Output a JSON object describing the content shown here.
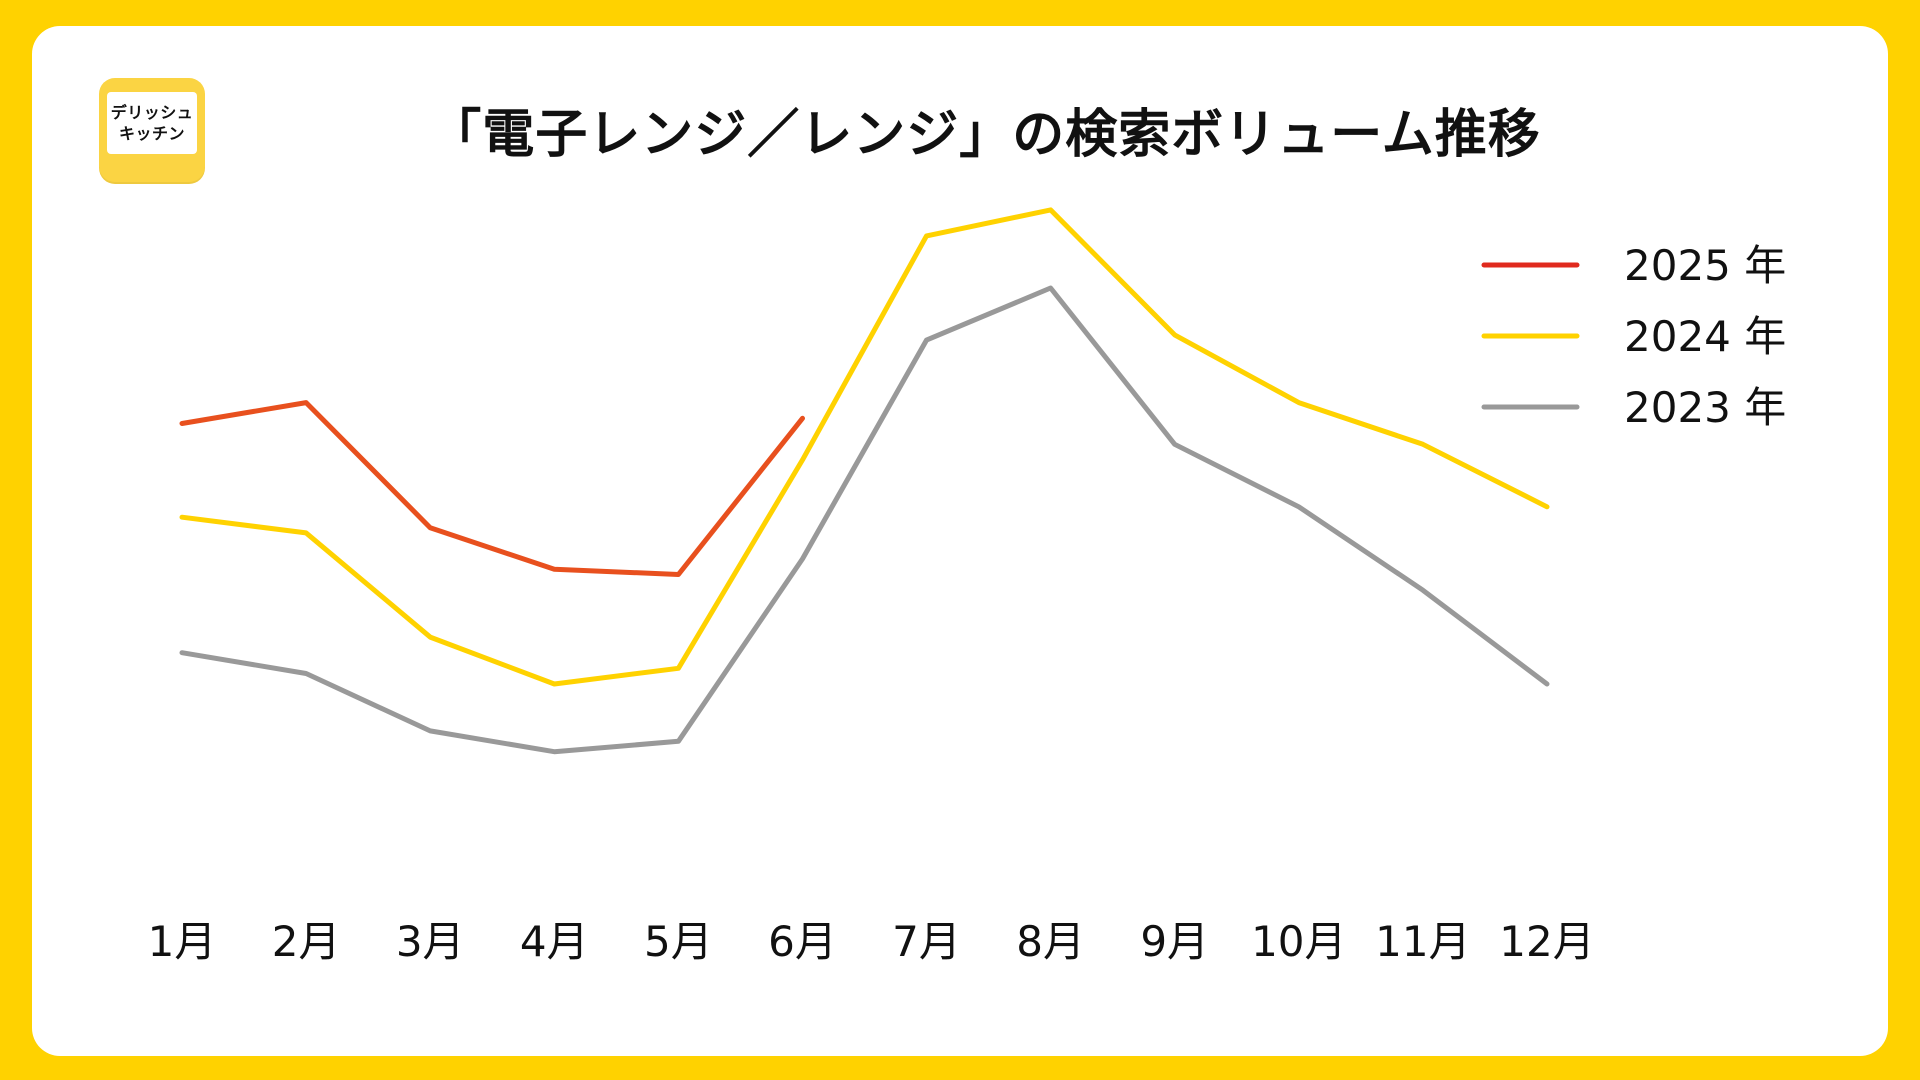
{
  "logo": {
    "line1": "デリッシュ",
    "line2": "キッチン",
    "color": "#FBD443"
  },
  "colors": {
    "frame": "#FFD200",
    "card": "#FFFFFF"
  },
  "chart_data": {
    "type": "line",
    "title": "「電子レンジ／レンジ」の検索ボリューム推移",
    "xlabel": "",
    "ylabel": "",
    "categories": [
      "1月",
      "2月",
      "3月",
      "4月",
      "5月",
      "6月",
      "7月",
      "8月",
      "9月",
      "10月",
      "11月",
      "12月"
    ],
    "ylim": [
      0,
      100
    ],
    "y_axis_shown": false,
    "grid": false,
    "legend_position": "top-right",
    "series": [
      {
        "name": "2025 年",
        "color": "#E8501E",
        "legend_color": "#E02A1E",
        "values": [
          74,
          78,
          54,
          46,
          45,
          75,
          null,
          null,
          null,
          null,
          null,
          null
        ]
      },
      {
        "name": "2024 年",
        "color": "#FFD200",
        "values": [
          56,
          53,
          33,
          24,
          27,
          67,
          110,
          115,
          91,
          78,
          70,
          58
        ]
      },
      {
        "name": "2023 年",
        "color": "#999999",
        "values": [
          30,
          26,
          15,
          11,
          13,
          48,
          90,
          100,
          70,
          58,
          42,
          24
        ]
      }
    ]
  }
}
